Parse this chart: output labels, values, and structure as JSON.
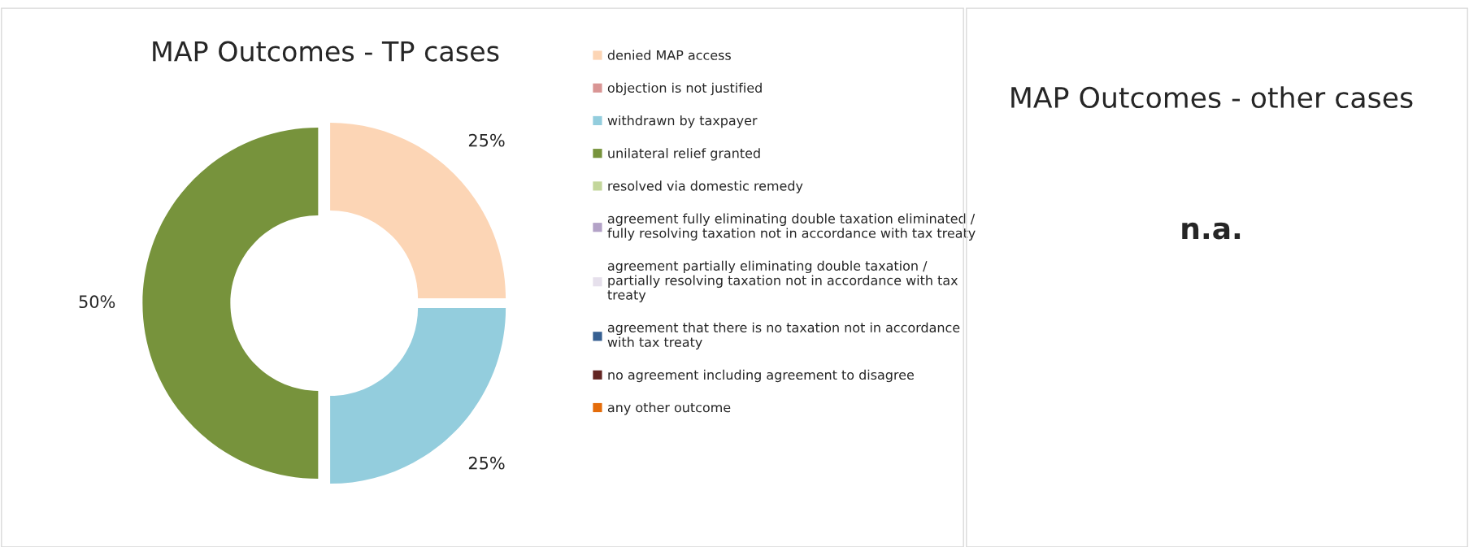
{
  "chart_data": [
    {
      "type": "donut",
      "title": "MAP Outcomes - TP cases",
      "categories": [
        "denied MAP access",
        "objection is not justified",
        "withdrawn by taxpayer",
        "unilateral relief granted",
        "resolved via domestic remedy",
        "agreement fully eliminating double taxation eliminated /\nfully resolving taxation not in accordance with tax treaty",
        "agreement partially eliminating double taxation /\npartially resolving taxation not in accordance with tax\ntreaty",
        "agreement that there is no taxation not in accordance\nwith tax treaty",
        "no agreement including agreement to disagree",
        "any other outcome"
      ],
      "values": [
        25,
        0,
        25,
        50,
        0,
        0,
        0,
        0,
        0,
        0
      ],
      "colors": [
        "#fcd5b5",
        "#d99594",
        "#93cddd",
        "#77933c",
        "#c3d69b",
        "#b3a2c7",
        "#e6e0ec",
        "#376092",
        "#632523",
        "#e46c0a"
      ],
      "value_labels": [
        "25%",
        null,
        "25%",
        "50%",
        null,
        null,
        null,
        null,
        null,
        null
      ],
      "legend": "right"
    },
    {
      "type": "other",
      "title": "MAP Outcomes - other cases",
      "annotations": [
        "n.a."
      ]
    }
  ]
}
